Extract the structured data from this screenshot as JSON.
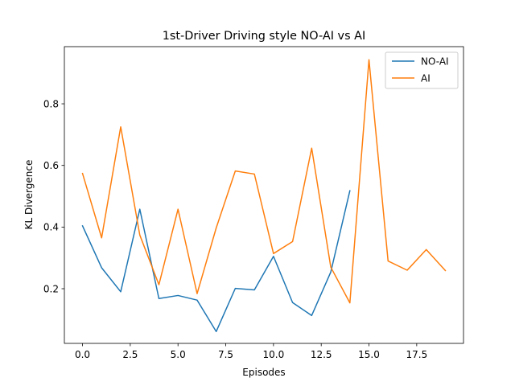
{
  "chart_data": {
    "type": "line",
    "title": "1st-Driver Driving style NO-AI vs AI",
    "xlabel": "Episodes",
    "ylabel": "KL Divergence",
    "xlim": [
      -0.95,
      19.95
    ],
    "ylim": [
      0.0226,
      0.9854
    ],
    "xticks": [
      0.0,
      2.5,
      5.0,
      7.5,
      10.0,
      12.5,
      15.0,
      17.5
    ],
    "xtick_labels": [
      "0.0",
      "2.5",
      "5.0",
      "7.5",
      "10.0",
      "12.5",
      "15.0",
      "17.5"
    ],
    "yticks": [
      0.2,
      0.4,
      0.6,
      0.8
    ],
    "ytick_labels": [
      "0.2",
      "0.4",
      "0.6",
      "0.8"
    ],
    "grid": false,
    "legend_position": "top-right",
    "series": [
      {
        "name": "NO-AI",
        "color": "#1f77b4",
        "x": [
          0,
          1,
          2,
          3,
          4,
          5,
          6,
          7,
          8,
          9,
          10,
          11,
          12,
          13,
          14
        ],
        "y": [
          0.404,
          0.268,
          0.19,
          0.458,
          0.168,
          0.178,
          0.163,
          0.061,
          0.201,
          0.196,
          0.305,
          0.155,
          0.113,
          0.254,
          0.518
        ]
      },
      {
        "name": "AI",
        "color": "#ff7f0e",
        "x": [
          0,
          1,
          2,
          3,
          4,
          5,
          6,
          7,
          8,
          9,
          10,
          11,
          12,
          13,
          14,
          15,
          16,
          17,
          18,
          19
        ],
        "y": [
          0.574,
          0.365,
          0.725,
          0.374,
          0.213,
          0.458,
          0.184,
          0.397,
          0.582,
          0.572,
          0.314,
          0.353,
          0.656,
          0.27,
          0.154,
          0.943,
          0.29,
          0.26,
          0.327,
          0.259
        ]
      }
    ]
  }
}
